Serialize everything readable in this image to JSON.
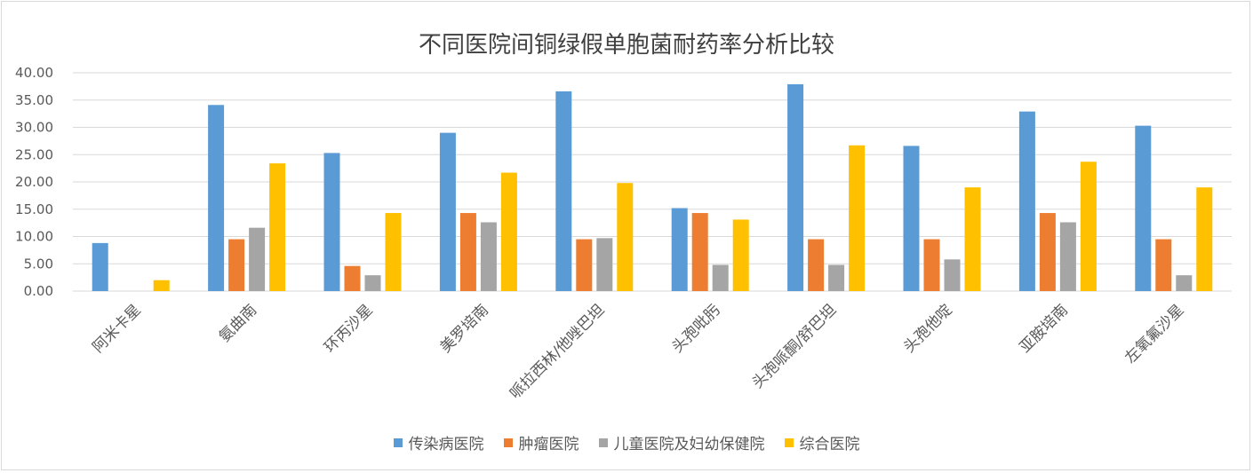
{
  "chart_data": {
    "type": "bar",
    "title": "不同医院间铜绿假单胞菌耐药率分析比较",
    "xlabel": "",
    "ylabel": "",
    "ylim": [
      0,
      40
    ],
    "yticks": [
      "0.00",
      "5.00",
      "10.00",
      "15.00",
      "20.00",
      "25.00",
      "30.00",
      "35.00",
      "40.00"
    ],
    "grid": true,
    "legend_position": "bottom",
    "categories": [
      "阿米卡星",
      "氨曲南",
      "环丙沙星",
      "美罗培南",
      "哌拉西林/他唑巴坦",
      "头孢吡肟",
      "头孢哌酮/舒巴坦",
      "头孢他啶",
      "亚胺培南",
      "左氧氟沙星"
    ],
    "series": [
      {
        "name": "传染病医院",
        "color": "#5b9bd5",
        "values": [
          8.8,
          34.1,
          25.3,
          29.0,
          36.6,
          15.2,
          37.9,
          26.6,
          32.9,
          30.3
        ]
      },
      {
        "name": "肿瘤医院",
        "color": "#ed7d31",
        "values": [
          0,
          9.5,
          4.6,
          14.3,
          9.5,
          14.3,
          9.5,
          9.5,
          14.3,
          9.5
        ]
      },
      {
        "name": "儿童医院及妇幼保健院",
        "color": "#a5a5a5",
        "values": [
          0,
          11.6,
          2.9,
          12.6,
          9.7,
          4.8,
          4.8,
          5.8,
          12.6,
          2.9
        ]
      },
      {
        "name": "综合医院",
        "color": "#ffc000",
        "values": [
          2.0,
          23.4,
          14.3,
          21.7,
          19.8,
          13.1,
          26.7,
          19.0,
          23.7,
          19.0
        ]
      }
    ]
  }
}
